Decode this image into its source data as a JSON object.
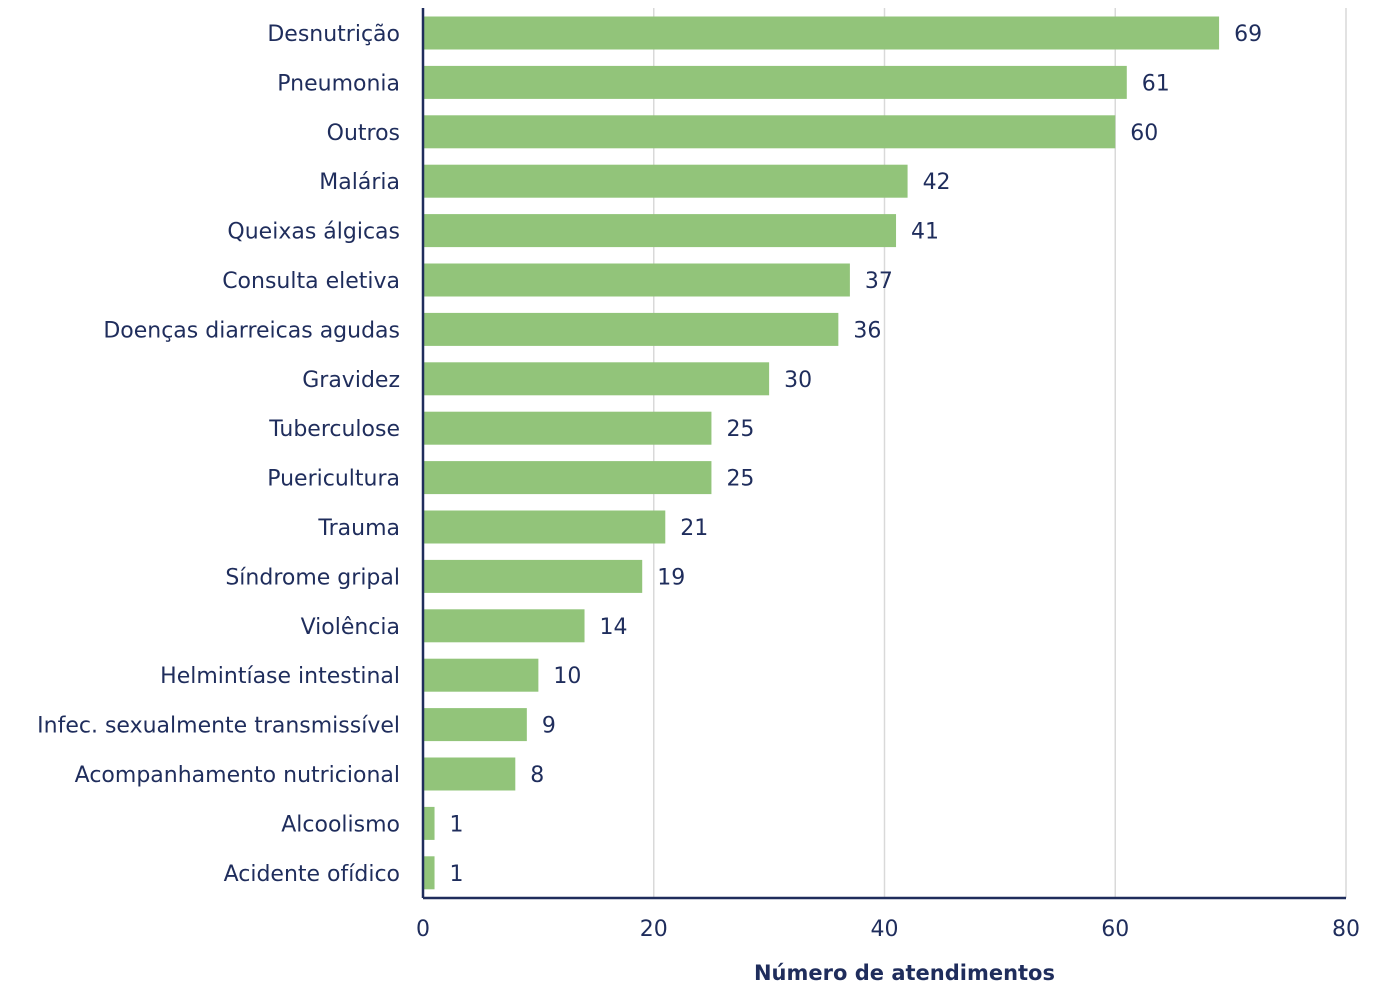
{
  "chart_data": {
    "type": "bar",
    "orientation": "horizontal",
    "categories": [
      "Desnutrição",
      "Pneumonia",
      "Outros",
      "Malária",
      "Queixas álgicas",
      "Consulta eletiva",
      "Doenças diarreicas agudas",
      "Gravidez",
      "Tuberculose",
      "Puericultura",
      "Trauma",
      "Síndrome gripal",
      "Violência",
      "Helmintíase intestinal",
      "Infec. sexualmente transmissível",
      "Acompanhamento nutricional",
      "Alcoolismo",
      "Acidente ofídico"
    ],
    "values": [
      69,
      61,
      60,
      42,
      41,
      37,
      36,
      30,
      25,
      25,
      21,
      19,
      14,
      10,
      9,
      8,
      1,
      1
    ],
    "xlabel": "Número de atendimentos",
    "ylabel": "",
    "xlim": [
      0,
      80
    ],
    "xticks": [
      0,
      20,
      40,
      60,
      80
    ],
    "grid": "vertical",
    "data_labels": true,
    "colors": {
      "bar": "#92c47a",
      "text": "#1f2d5c",
      "axis": "#1f2d5c",
      "grid": "#d9d9d9"
    }
  }
}
